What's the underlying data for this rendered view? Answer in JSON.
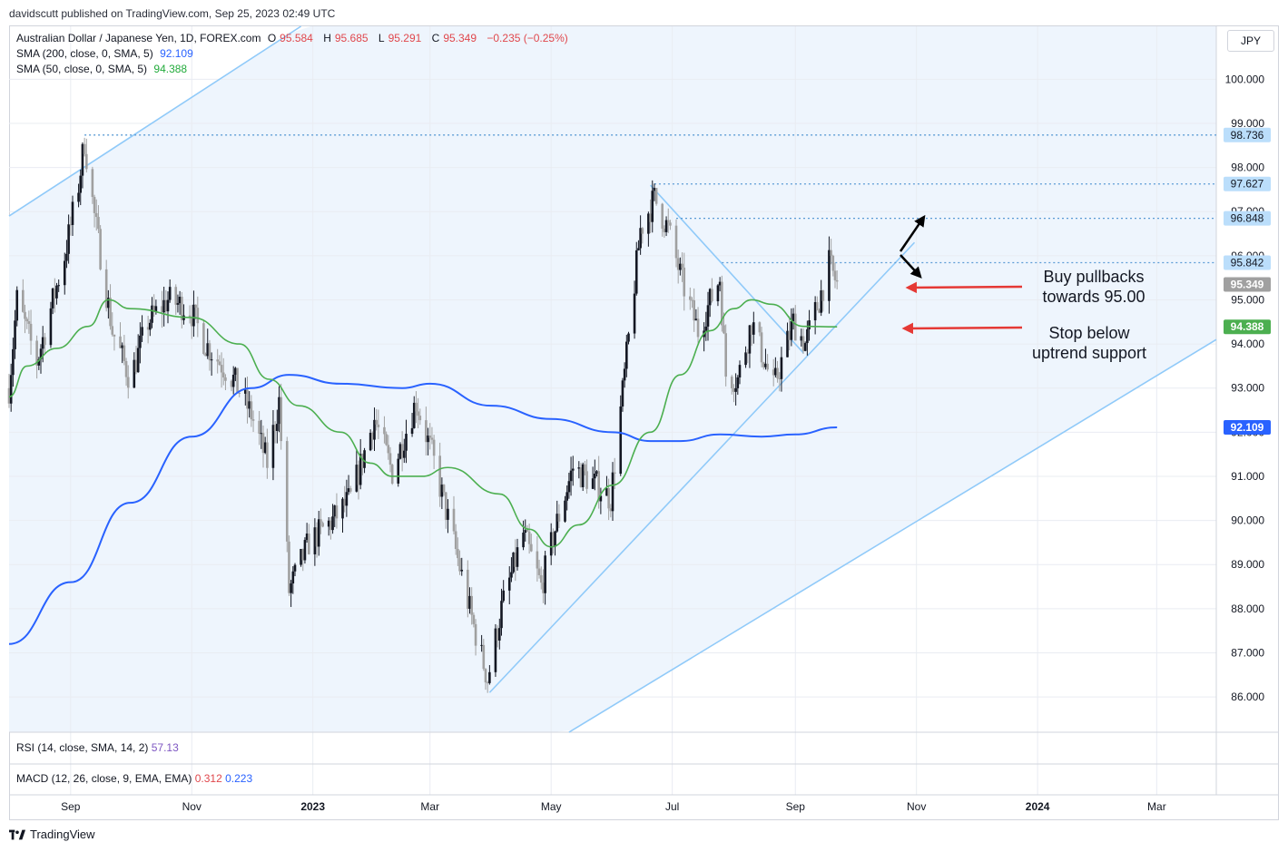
{
  "header": {
    "attribution": "davidscutt published on TradingView.com, Sep 25, 2023 02:49 UTC"
  },
  "legend": {
    "symbol": "Australian Dollar / Japanese Yen, 1D, FOREX.com",
    "o_label": "O",
    "o": "95.584",
    "h_label": "H",
    "h": "95.685",
    "l_label": "L",
    "l": "95.291",
    "c_label": "C",
    "c": "95.349",
    "change": "−0.235 (−0.25%)",
    "sma200_label": "SMA (200, close, 0, SMA, 5)",
    "sma200_value": "92.109",
    "sma50_label": "SMA (50, close, 0, SMA, 5)",
    "sma50_value": "94.388"
  },
  "indicators": {
    "rsi_label": "RSI (14, close, SMA, 14, 2)",
    "rsi_value": "57.13",
    "macd_label": "MACD (12, 26, close, 9, EMA, EMA)",
    "macd_value": "0.312",
    "macd_signal": "0.223"
  },
  "currency_button": "JPY",
  "brand": "TradingView",
  "annotations": {
    "note1": [
      "Buy pullbacks",
      "towards 95.00"
    ],
    "note2": [
      "Stop below",
      "uptrend support"
    ]
  },
  "colors": {
    "up": "#131722",
    "down": "#a0a0a0",
    "sma50": "#4caf50",
    "sma200": "#2962ff",
    "channel": "#90caf9",
    "channel_fill": "#eef5fd",
    "arrow_red": "#e53935",
    "dotted": "#5b9bd5"
  },
  "chart_data": {
    "type": "candlestick",
    "instrument": "AUD/JPY",
    "interval": "1D",
    "y_axis": {
      "range": [
        85.2,
        101.2
      ],
      "ticks": [
        "100.000",
        "99.000",
        "98.000",
        "97.000",
        "96.000",
        "95.000",
        "94.000",
        "93.000",
        "92.000",
        "91.000",
        "90.000",
        "89.000",
        "88.000",
        "87.000",
        "86.000"
      ]
    },
    "price_labels": [
      {
        "value": 98.736,
        "text": "98.736",
        "style": "level"
      },
      {
        "value": 97.627,
        "text": "97.627",
        "style": "level"
      },
      {
        "value": 96.848,
        "text": "96.848",
        "style": "level"
      },
      {
        "value": 95.842,
        "text": "95.842",
        "style": "level"
      },
      {
        "value": 95.349,
        "text": "95.349",
        "style": "last"
      },
      {
        "value": 94.388,
        "text": "94.388",
        "style": "sma50"
      },
      {
        "value": 92.109,
        "text": "92.109",
        "style": "sma200"
      }
    ],
    "x_axis": {
      "range": [
        "2022-08-01",
        "2024-03-31"
      ],
      "ticks": [
        {
          "date": "2022-09-01",
          "label": "Sep",
          "bold": false
        },
        {
          "date": "2022-11-01",
          "label": "Nov",
          "bold": false
        },
        {
          "date": "2023-01-01",
          "label": "2023",
          "bold": true
        },
        {
          "date": "2023-03-01",
          "label": "Mar",
          "bold": false
        },
        {
          "date": "2023-05-01",
          "label": "May",
          "bold": false
        },
        {
          "date": "2023-07-01",
          "label": "Jul",
          "bold": false
        },
        {
          "date": "2023-09-01",
          "label": "Sep",
          "bold": false
        },
        {
          "date": "2023-11-01",
          "label": "Nov",
          "bold": false
        },
        {
          "date": "2024-01-01",
          "label": "2024",
          "bold": true
        },
        {
          "date": "2024-03-01",
          "label": "Mar",
          "bold": false
        }
      ]
    },
    "price_path_anchors": [
      [
        "2022-08-01",
        93.0
      ],
      [
        "2022-08-05",
        95.0
      ],
      [
        "2022-08-15",
        93.6
      ],
      [
        "2022-08-22",
        94.8
      ],
      [
        "2022-08-29",
        96.0
      ],
      [
        "2022-09-05",
        97.6
      ],
      [
        "2022-09-08",
        98.6
      ],
      [
        "2022-09-13",
        96.9
      ],
      [
        "2022-09-22",
        94.3
      ],
      [
        "2022-10-01",
        93.2
      ],
      [
        "2022-10-10",
        94.5
      ],
      [
        "2022-10-20",
        95.0
      ],
      [
        "2022-10-31",
        94.8
      ],
      [
        "2022-11-08",
        94.0
      ],
      [
        "2022-11-22",
        93.2
      ],
      [
        "2022-12-01",
        92.4
      ],
      [
        "2022-12-09",
        91.3
      ],
      [
        "2022-12-15",
        92.7
      ],
      [
        "2022-12-20",
        88.4
      ],
      [
        "2022-12-30",
        89.5
      ],
      [
        "2023-01-11",
        90.0
      ],
      [
        "2023-01-20",
        90.5
      ],
      [
        "2023-02-01",
        92.3
      ],
      [
        "2023-02-10",
        91.1
      ],
      [
        "2023-02-22",
        92.7
      ],
      [
        "2023-03-02",
        91.5
      ],
      [
        "2023-03-13",
        89.5
      ],
      [
        "2023-03-23",
        87.6
      ],
      [
        "2023-03-30",
        86.4
      ],
      [
        "2023-04-06",
        88.0
      ],
      [
        "2023-04-17",
        89.7
      ],
      [
        "2023-04-26",
        88.5
      ],
      [
        "2023-05-03",
        89.8
      ],
      [
        "2023-05-12",
        91.2
      ],
      [
        "2023-05-24",
        90.8
      ],
      [
        "2023-05-31",
        90.5
      ],
      [
        "2023-06-07",
        93.3
      ],
      [
        "2023-06-15",
        96.6
      ],
      [
        "2023-06-22",
        97.3
      ],
      [
        "2023-06-29",
        96.6
      ],
      [
        "2023-07-06",
        95.4
      ],
      [
        "2023-07-14",
        94.3
      ],
      [
        "2023-07-25",
        95.5
      ],
      [
        "2023-07-28",
        93.3
      ],
      [
        "2023-08-03",
        93.2
      ],
      [
        "2023-08-10",
        94.5
      ],
      [
        "2023-08-21",
        93.0
      ],
      [
        "2023-08-31",
        94.5
      ],
      [
        "2023-09-06",
        94.0
      ],
      [
        "2023-09-13",
        95.0
      ],
      [
        "2023-09-18",
        95.8
      ],
      [
        "2023-09-22",
        95.349
      ]
    ],
    "sma200_anchors": [
      [
        "2022-08-01",
        87.2
      ],
      [
        "2022-09-01",
        88.6
      ],
      [
        "2022-10-01",
        90.4
      ],
      [
        "2022-11-01",
        91.9
      ],
      [
        "2022-12-01",
        93.0
      ],
      [
        "2022-12-20",
        93.3
      ],
      [
        "2023-01-15",
        93.1
      ],
      [
        "2023-02-15",
        93.0
      ],
      [
        "2023-03-01",
        93.1
      ],
      [
        "2023-04-01",
        92.6
      ],
      [
        "2023-05-01",
        92.3
      ],
      [
        "2023-06-01",
        92.0
      ],
      [
        "2023-06-20",
        91.8
      ],
      [
        "2023-07-05",
        91.8
      ],
      [
        "2023-07-25",
        91.95
      ],
      [
        "2023-08-15",
        91.9
      ],
      [
        "2023-09-01",
        91.95
      ],
      [
        "2023-09-22",
        92.109
      ]
    ],
    "sma50_anchors": [
      [
        "2022-08-01",
        92.8
      ],
      [
        "2022-08-10",
        93.5
      ],
      [
        "2022-08-25",
        93.9
      ],
      [
        "2022-09-10",
        94.4
      ],
      [
        "2022-09-20",
        95.0
      ],
      [
        "2022-10-01",
        94.8
      ],
      [
        "2022-11-01",
        94.6
      ],
      [
        "2022-11-25",
        94.0
      ],
      [
        "2022-12-10",
        93.2
      ],
      [
        "2022-12-25",
        92.6
      ],
      [
        "2023-01-15",
        92.0
      ],
      [
        "2023-01-30",
        91.3
      ],
      [
        "2023-02-10",
        91.0
      ],
      [
        "2023-02-25",
        91.0
      ],
      [
        "2023-03-10",
        91.2
      ],
      [
        "2023-04-05",
        90.6
      ],
      [
        "2023-04-20",
        89.8
      ],
      [
        "2023-05-01",
        89.4
      ],
      [
        "2023-05-15",
        89.9
      ],
      [
        "2023-06-01",
        90.8
      ],
      [
        "2023-06-20",
        92.0
      ],
      [
        "2023-07-05",
        93.3
      ],
      [
        "2023-07-20",
        94.3
      ],
      [
        "2023-08-01",
        94.8
      ],
      [
        "2023-08-10",
        95.0
      ],
      [
        "2023-08-20",
        94.9
      ],
      [
        "2023-09-05",
        94.4
      ],
      [
        "2023-09-22",
        94.388
      ]
    ],
    "trendlines": [
      {
        "name": "channel-upper",
        "from": [
          "2022-08-01",
          96.9
        ],
        "to": [
          "2022-12-26",
          101.2
        ]
      },
      {
        "name": "channel-lower",
        "from": [
          "2023-05-10",
          85.2
        ],
        "to": [
          "2024-03-31",
          94.1
        ]
      },
      {
        "name": "uptrend-support",
        "from": [
          "2023-03-31",
          86.1
        ],
        "to": [
          "2023-10-31",
          96.3
        ]
      },
      {
        "name": "descending-resistance",
        "from": [
          "2023-06-20",
          97.6
        ],
        "to": [
          "2023-09-05",
          93.8
        ]
      }
    ],
    "horizontal_levels": [
      {
        "from": "2022-09-08",
        "value": 98.736
      },
      {
        "from": "2023-06-22",
        "value": 97.627
      },
      {
        "from": "2023-07-03",
        "value": 96.848
      },
      {
        "from": "2023-07-26",
        "value": 95.842
      }
    ]
  }
}
